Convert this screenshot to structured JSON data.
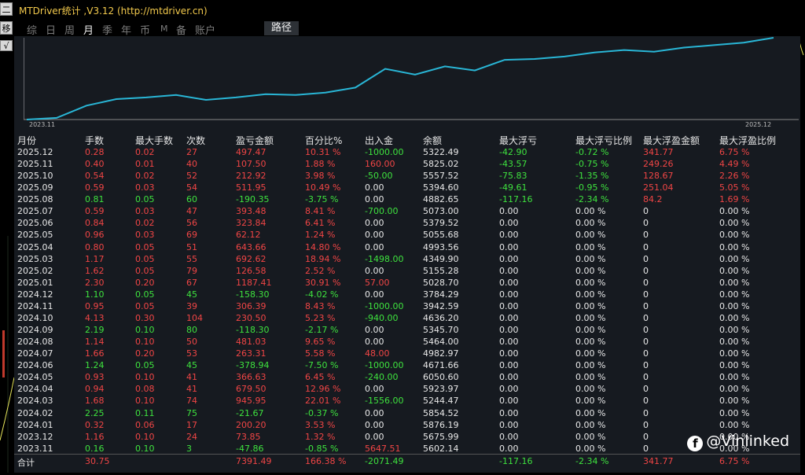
{
  "left_panel": {
    "btn1": "二",
    "btn2": "移",
    "btn3": "√"
  },
  "title": "MTDriver统计 ,V3.12 (http://mtdriver.cn)",
  "toolbar": {
    "buttons": [
      "综",
      "日",
      "周",
      "月",
      "季",
      "年",
      "币",
      "M",
      "备",
      "账户"
    ],
    "active": "月",
    "path_button": "路径"
  },
  "chart": {
    "start_label": "2023.11",
    "end_label": "2025.12",
    "line_color": "#29b6d6",
    "balance_trend": [
      0.0,
      0.02,
      0.17,
      0.25,
      0.27,
      0.3,
      0.24,
      0.27,
      0.31,
      0.3,
      0.33,
      0.39,
      0.62,
      0.55,
      0.65,
      0.6,
      0.73,
      0.74,
      0.77,
      0.82,
      0.85,
      0.83,
      0.88,
      0.91,
      0.94,
      1.0
    ]
  },
  "table": {
    "headers": [
      "月份",
      "手数",
      "最大手数",
      "次数",
      "盈亏金额",
      "百分比%",
      "出入金",
      "余额",
      "最大浮亏",
      "最大浮亏比例",
      "最大浮盈金额",
      "最大浮盈比例"
    ],
    "rows": [
      {
        "month": "2025.12",
        "lots": "0.28",
        "max_lots": "0.02",
        "count": "27",
        "pnl": "497.47",
        "pct": "10.31 %",
        "flow": "-1000.00",
        "balance": "5322.49",
        "max_dd": "-42.90",
        "max_dd_pct": "-0.72 %",
        "max_fp": "341.77",
        "max_fp_pct": "6.75 %",
        "c": "r",
        "cf": "g",
        "cdd": "g",
        "cfp": "r"
      },
      {
        "month": "2025.11",
        "lots": "0.40",
        "max_lots": "0.01",
        "count": "40",
        "pnl": "107.50",
        "pct": "1.88 %",
        "flow": "160.00",
        "balance": "5825.02",
        "max_dd": "-43.57",
        "max_dd_pct": "-0.75 %",
        "max_fp": "249.26",
        "max_fp_pct": "4.49 %",
        "c": "r",
        "cf": "r",
        "cdd": "g",
        "cfp": "r"
      },
      {
        "month": "2025.10",
        "lots": "0.54",
        "max_lots": "0.02",
        "count": "52",
        "pnl": "212.92",
        "pct": "3.98 %",
        "flow": "-50.00",
        "balance": "5557.52",
        "max_dd": "-75.83",
        "max_dd_pct": "-1.35 %",
        "max_fp": "128.67",
        "max_fp_pct": "2.26 %",
        "c": "r",
        "cf": "g",
        "cdd": "g",
        "cfp": "r"
      },
      {
        "month": "2025.09",
        "lots": "0.59",
        "max_lots": "0.03",
        "count": "54",
        "pnl": "511.95",
        "pct": "10.49 %",
        "flow": "0.00",
        "balance": "5394.60",
        "max_dd": "-49.61",
        "max_dd_pct": "-0.95 %",
        "max_fp": "251.04",
        "max_fp_pct": "5.05 %",
        "c": "r",
        "cf": "w",
        "cdd": "g",
        "cfp": "r"
      },
      {
        "month": "2025.08",
        "lots": "0.81",
        "max_lots": "0.05",
        "count": "60",
        "pnl": "-190.35",
        "pct": "-3.75 %",
        "flow": "0.00",
        "balance": "4882.65",
        "max_dd": "-117.16",
        "max_dd_pct": "-2.34 %",
        "max_fp": "84.2",
        "max_fp_pct": "1.69 %",
        "c": "g",
        "cf": "w",
        "cdd": "g",
        "cfp": "r"
      },
      {
        "month": "2025.07",
        "lots": "0.59",
        "max_lots": "0.03",
        "count": "47",
        "pnl": "393.48",
        "pct": "8.41 %",
        "flow": "-700.00",
        "balance": "5073.00",
        "max_dd": "0.00",
        "max_dd_pct": "0.00 %",
        "max_fp": "0",
        "max_fp_pct": "0.00 %",
        "c": "r",
        "cf": "g",
        "cdd": "w",
        "cfp": "w"
      },
      {
        "month": "2025.06",
        "lots": "0.84",
        "max_lots": "0.02",
        "count": "56",
        "pnl": "323.84",
        "pct": "6.41 %",
        "flow": "0.00",
        "balance": "5379.52",
        "max_dd": "0.00",
        "max_dd_pct": "0.00 %",
        "max_fp": "0",
        "max_fp_pct": "0.00 %",
        "c": "r",
        "cf": "w",
        "cdd": "w",
        "cfp": "w"
      },
      {
        "month": "2025.05",
        "lots": "0.96",
        "max_lots": "0.03",
        "count": "69",
        "pnl": "62.12",
        "pct": "1.24 %",
        "flow": "0.00",
        "balance": "5055.68",
        "max_dd": "0.00",
        "max_dd_pct": "0.00 %",
        "max_fp": "0",
        "max_fp_pct": "0.00 %",
        "c": "r",
        "cf": "w",
        "cdd": "w",
        "cfp": "w"
      },
      {
        "month": "2025.04",
        "lots": "0.80",
        "max_lots": "0.05",
        "count": "51",
        "pnl": "643.66",
        "pct": "14.80 %",
        "flow": "0.00",
        "balance": "4993.56",
        "max_dd": "0.00",
        "max_dd_pct": "0.00 %",
        "max_fp": "0",
        "max_fp_pct": "0.00 %",
        "c": "r",
        "cf": "w",
        "cdd": "w",
        "cfp": "w"
      },
      {
        "month": "2025.03",
        "lots": "1.17",
        "max_lots": "0.05",
        "count": "55",
        "pnl": "692.62",
        "pct": "18.94 %",
        "flow": "-1498.00",
        "balance": "4349.90",
        "max_dd": "0.00",
        "max_dd_pct": "0.00 %",
        "max_fp": "0",
        "max_fp_pct": "0.00 %",
        "c": "r",
        "cf": "g",
        "cdd": "w",
        "cfp": "w"
      },
      {
        "month": "2025.02",
        "lots": "1.62",
        "max_lots": "0.05",
        "count": "79",
        "pnl": "126.58",
        "pct": "2.52 %",
        "flow": "0.00",
        "balance": "5155.28",
        "max_dd": "0.00",
        "max_dd_pct": "0.00 %",
        "max_fp": "0",
        "max_fp_pct": "0.00 %",
        "c": "r",
        "cf": "w",
        "cdd": "w",
        "cfp": "w"
      },
      {
        "month": "2025.01",
        "lots": "2.30",
        "max_lots": "0.20",
        "count": "67",
        "pnl": "1187.41",
        "pct": "30.91 %",
        "flow": "57.00",
        "balance": "5028.70",
        "max_dd": "0.00",
        "max_dd_pct": "0.00 %",
        "max_fp": "0",
        "max_fp_pct": "0.00 %",
        "c": "r",
        "cf": "r",
        "cdd": "w",
        "cfp": "w"
      },
      {
        "month": "2024.12",
        "lots": "1.10",
        "max_lots": "0.05",
        "count": "45",
        "pnl": "-158.30",
        "pct": "-4.02 %",
        "flow": "0.00",
        "balance": "3784.29",
        "max_dd": "0.00",
        "max_dd_pct": "0.00 %",
        "max_fp": "0",
        "max_fp_pct": "0.00 %",
        "c": "g",
        "cf": "w",
        "cdd": "w",
        "cfp": "w"
      },
      {
        "month": "2024.11",
        "lots": "0.95",
        "max_lots": "0.05",
        "count": "39",
        "pnl": "306.39",
        "pct": "8.43 %",
        "flow": "-1000.00",
        "balance": "3942.59",
        "max_dd": "0.00",
        "max_dd_pct": "0.00 %",
        "max_fp": "0",
        "max_fp_pct": "0.00 %",
        "c": "r",
        "cf": "g",
        "cdd": "w",
        "cfp": "w"
      },
      {
        "month": "2024.10",
        "lots": "4.13",
        "max_lots": "0.30",
        "count": "104",
        "pnl": "230.50",
        "pct": "5.23 %",
        "flow": "-940.00",
        "balance": "4636.20",
        "max_dd": "0.00",
        "max_dd_pct": "0.00 %",
        "max_fp": "0",
        "max_fp_pct": "0.00 %",
        "c": "r",
        "cf": "g",
        "cdd": "w",
        "cfp": "w"
      },
      {
        "month": "2024.09",
        "lots": "2.19",
        "max_lots": "0.10",
        "count": "80",
        "pnl": "-118.30",
        "pct": "-2.17 %",
        "flow": "0.00",
        "balance": "5345.70",
        "max_dd": "0.00",
        "max_dd_pct": "0.00 %",
        "max_fp": "0",
        "max_fp_pct": "0.00 %",
        "c": "g",
        "cf": "w",
        "cdd": "w",
        "cfp": "w"
      },
      {
        "month": "2024.08",
        "lots": "1.14",
        "max_lots": "0.10",
        "count": "50",
        "pnl": "481.03",
        "pct": "9.65 %",
        "flow": "0.00",
        "balance": "5464.00",
        "max_dd": "0.00",
        "max_dd_pct": "0.00 %",
        "max_fp": "0",
        "max_fp_pct": "0.00 %",
        "c": "r",
        "cf": "w",
        "cdd": "w",
        "cfp": "w"
      },
      {
        "month": "2024.07",
        "lots": "1.66",
        "max_lots": "0.20",
        "count": "53",
        "pnl": "263.31",
        "pct": "5.58 %",
        "flow": "48.00",
        "balance": "4982.97",
        "max_dd": "0.00",
        "max_dd_pct": "0.00 %",
        "max_fp": "0",
        "max_fp_pct": "0.00 %",
        "c": "r",
        "cf": "r",
        "cdd": "w",
        "cfp": "w"
      },
      {
        "month": "2024.06",
        "lots": "1.24",
        "max_lots": "0.05",
        "count": "45",
        "pnl": "-378.94",
        "pct": "-7.50 %",
        "flow": "-1000.00",
        "balance": "4671.66",
        "max_dd": "0.00",
        "max_dd_pct": "0.00 %",
        "max_fp": "0",
        "max_fp_pct": "0.00 %",
        "c": "g",
        "cf": "g",
        "cdd": "w",
        "cfp": "w"
      },
      {
        "month": "2024.05",
        "lots": "0.93",
        "max_lots": "0.10",
        "count": "41",
        "pnl": "366.63",
        "pct": "6.45 %",
        "flow": "-240.00",
        "balance": "6050.60",
        "max_dd": "0.00",
        "max_dd_pct": "0.00 %",
        "max_fp": "0",
        "max_fp_pct": "0.00 %",
        "c": "r",
        "cf": "g",
        "cdd": "w",
        "cfp": "w"
      },
      {
        "month": "2024.04",
        "lots": "0.94",
        "max_lots": "0.08",
        "count": "41",
        "pnl": "679.50",
        "pct": "12.96 %",
        "flow": "0.00",
        "balance": "5923.97",
        "max_dd": "0.00",
        "max_dd_pct": "0.00 %",
        "max_fp": "0",
        "max_fp_pct": "0.00 %",
        "c": "r",
        "cf": "w",
        "cdd": "w",
        "cfp": "w"
      },
      {
        "month": "2024.03",
        "lots": "1.68",
        "max_lots": "0.10",
        "count": "74",
        "pnl": "945.95",
        "pct": "22.01 %",
        "flow": "-1556.00",
        "balance": "5244.47",
        "max_dd": "0.00",
        "max_dd_pct": "0.00 %",
        "max_fp": "0",
        "max_fp_pct": "0.00 %",
        "c": "r",
        "cf": "g",
        "cdd": "w",
        "cfp": "w"
      },
      {
        "month": "2024.02",
        "lots": "2.25",
        "max_lots": "0.11",
        "count": "75",
        "pnl": "-21.67",
        "pct": "-0.37 %",
        "flow": "0.00",
        "balance": "5854.52",
        "max_dd": "0.00",
        "max_dd_pct": "0.00 %",
        "max_fp": "0",
        "max_fp_pct": "0.00 %",
        "c": "g",
        "cf": "w",
        "cdd": "w",
        "cfp": "w"
      },
      {
        "month": "2024.01",
        "lots": "0.32",
        "max_lots": "0.06",
        "count": "17",
        "pnl": "200.20",
        "pct": "3.53 %",
        "flow": "0.00",
        "balance": "5876.19",
        "max_dd": "0.00",
        "max_dd_pct": "0.00 %",
        "max_fp": "0",
        "max_fp_pct": "0.00 %",
        "c": "r",
        "cf": "w",
        "cdd": "w",
        "cfp": "w"
      },
      {
        "month": "2023.12",
        "lots": "1.16",
        "max_lots": "0.10",
        "count": "24",
        "pnl": "73.85",
        "pct": "1.32 %",
        "flow": "0.00",
        "balance": "5675.99",
        "max_dd": "0.00",
        "max_dd_pct": "0.00 %",
        "max_fp": "0",
        "max_fp_pct": "0.00 %",
        "c": "r",
        "cf": "w",
        "cdd": "w",
        "cfp": "w"
      },
      {
        "month": "2023.11",
        "lots": "0.16",
        "max_lots": "0.10",
        "count": "3",
        "pnl": "-47.86",
        "pct": "-0.85 %",
        "flow": "5647.51",
        "balance": "5602.14",
        "max_dd": "0.00",
        "max_dd_pct": "0.00 %",
        "max_fp": "0",
        "max_fp_pct": "0.00 %",
        "c": "g",
        "cf": "r",
        "cdd": "w",
        "cfp": "w"
      }
    ],
    "total": {
      "label": "合计",
      "lots": "30.75",
      "pnl": "7391.49",
      "pct": "166.38 %",
      "flow": "-2071.49",
      "max_dd": "-117.16",
      "max_dd_pct": "-2.34 %",
      "max_fp": "341.77",
      "max_fp_pct": "6.75 %"
    }
  },
  "watermark": {
    "icon": "f",
    "text": "@Vinlinked"
  }
}
